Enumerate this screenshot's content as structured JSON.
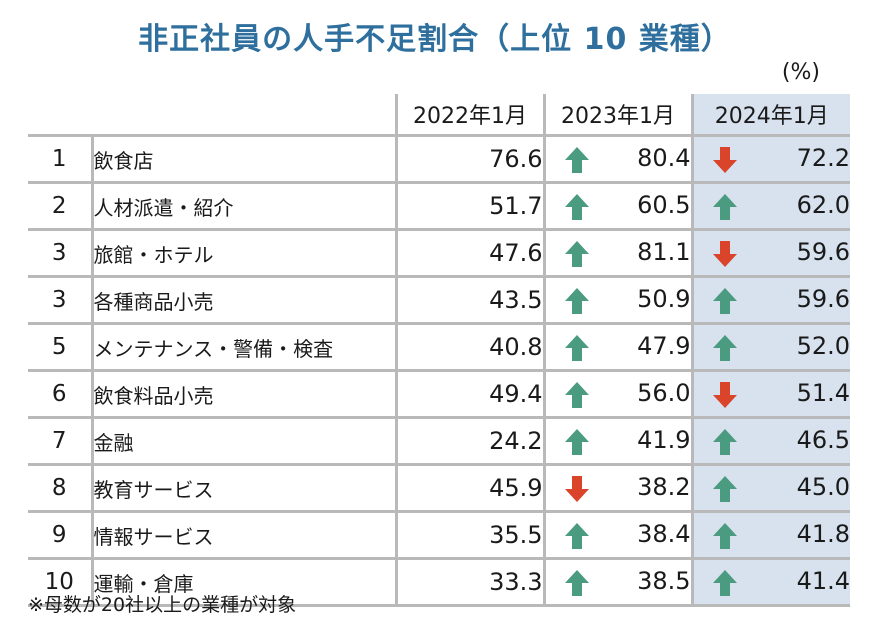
{
  "title": "非正社員の人手不足割合（上位 10 業種）",
  "unit": "(%)",
  "headers": [
    "2022年1月",
    "2023年1月",
    "2024年1月"
  ],
  "colors": {
    "up": "#4a9b7f",
    "down": "#d9442a",
    "highlight": "#d7e2ee",
    "title": "#2e6f9e"
  },
  "rows": [
    {
      "rank": "1",
      "industry": "飲食店",
      "y2022": "76.6",
      "y2023": "80.4",
      "a2023": "up",
      "y2024": "72.2",
      "a2024": "down"
    },
    {
      "rank": "2",
      "industry": "人材派遣・紹介",
      "y2022": "51.7",
      "y2023": "60.5",
      "a2023": "up",
      "y2024": "62.0",
      "a2024": "up"
    },
    {
      "rank": "3",
      "industry": "旅館・ホテル",
      "y2022": "47.6",
      "y2023": "81.1",
      "a2023": "up",
      "y2024": "59.6",
      "a2024": "down"
    },
    {
      "rank": "3",
      "industry": "各種商品小売",
      "y2022": "43.5",
      "y2023": "50.9",
      "a2023": "up",
      "y2024": "59.6",
      "a2024": "up"
    },
    {
      "rank": "5",
      "industry": "メンテナンス・警備・検査",
      "y2022": "40.8",
      "y2023": "47.9",
      "a2023": "up",
      "y2024": "52.0",
      "a2024": "up"
    },
    {
      "rank": "6",
      "industry": "飲食料品小売",
      "y2022": "49.4",
      "y2023": "56.0",
      "a2023": "up",
      "y2024": "51.4",
      "a2024": "down"
    },
    {
      "rank": "7",
      "industry": "金融",
      "y2022": "24.2",
      "y2023": "41.9",
      "a2023": "up",
      "y2024": "46.5",
      "a2024": "up"
    },
    {
      "rank": "8",
      "industry": "教育サービス",
      "y2022": "45.9",
      "y2023": "38.2",
      "a2023": "down",
      "y2024": "45.0",
      "a2024": "up"
    },
    {
      "rank": "9",
      "industry": "情報サービス",
      "y2022": "35.5",
      "y2023": "38.4",
      "a2023": "up",
      "y2024": "41.8",
      "a2024": "up"
    },
    {
      "rank": "10",
      "industry": "運輸・倉庫",
      "y2022": "33.3",
      "y2023": "38.5",
      "a2023": "up",
      "y2024": "41.4",
      "a2024": "up"
    }
  ],
  "note": "※母数が20社以上の業種が対象"
}
